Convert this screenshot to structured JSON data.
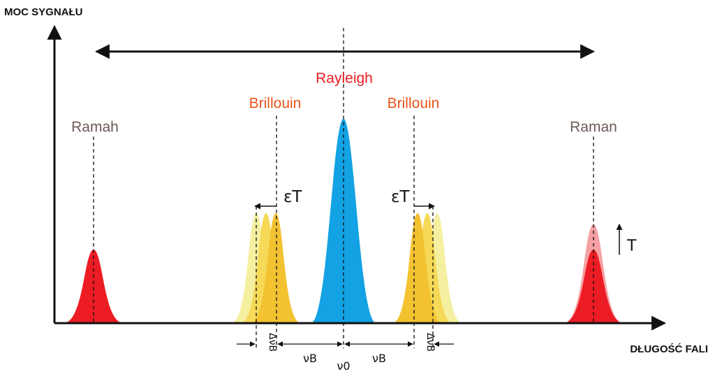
{
  "colors": {
    "raman": "#ec1c24",
    "raman_faded": "#f5a0a3",
    "brillouin_main": "#f2c230",
    "brillouin_mid": "#f5d957",
    "brillouin_light": "#f4f0a0",
    "rayleigh": "#13a2e4",
    "rayleigh_label": "#ec1c24",
    "brillouin_label": "#e8541a",
    "raman_label": "#6b5a55",
    "axis": "#111111"
  },
  "axes": {
    "y_title": "MOC SYGNAŁU",
    "x_title": "DŁUGOŚĆ FALI"
  },
  "labels": {
    "rayleigh": "Rayleigh",
    "brillouin_left": "Brillouin",
    "brillouin_right": "Brillouin",
    "raman_left": "Ramah",
    "raman_right": "Raman",
    "eps_t_left": "εT",
    "eps_t_right": "εT",
    "t_label": "T",
    "nu_b_left": "νB",
    "nu_b_right": "νB",
    "nu_0": "ν0",
    "delta_nu_b_left": "ΔνB",
    "delta_nu_b_right": "ΔνB"
  },
  "icons": {
    "range_arrow": "double-headed-arrow",
    "temperature_arrow": "up-arrow"
  }
}
